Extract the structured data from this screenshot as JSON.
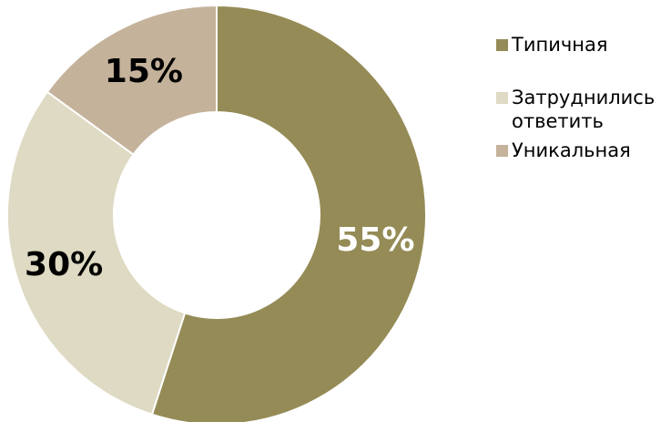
{
  "chart_data": {
    "type": "pie",
    "donut": true,
    "categories": [
      "Типичная",
      "Затруднились\nответить",
      "Уникальная"
    ],
    "values": [
      55,
      30,
      15
    ],
    "labels": [
      "55%",
      "30%",
      "15%"
    ],
    "colors": [
      "#958b56",
      "#dedac3",
      "#c4b29b"
    ],
    "label_colors": [
      "#ffffff",
      "#000000",
      "#000000"
    ],
    "legend_position": "right",
    "title": ""
  }
}
